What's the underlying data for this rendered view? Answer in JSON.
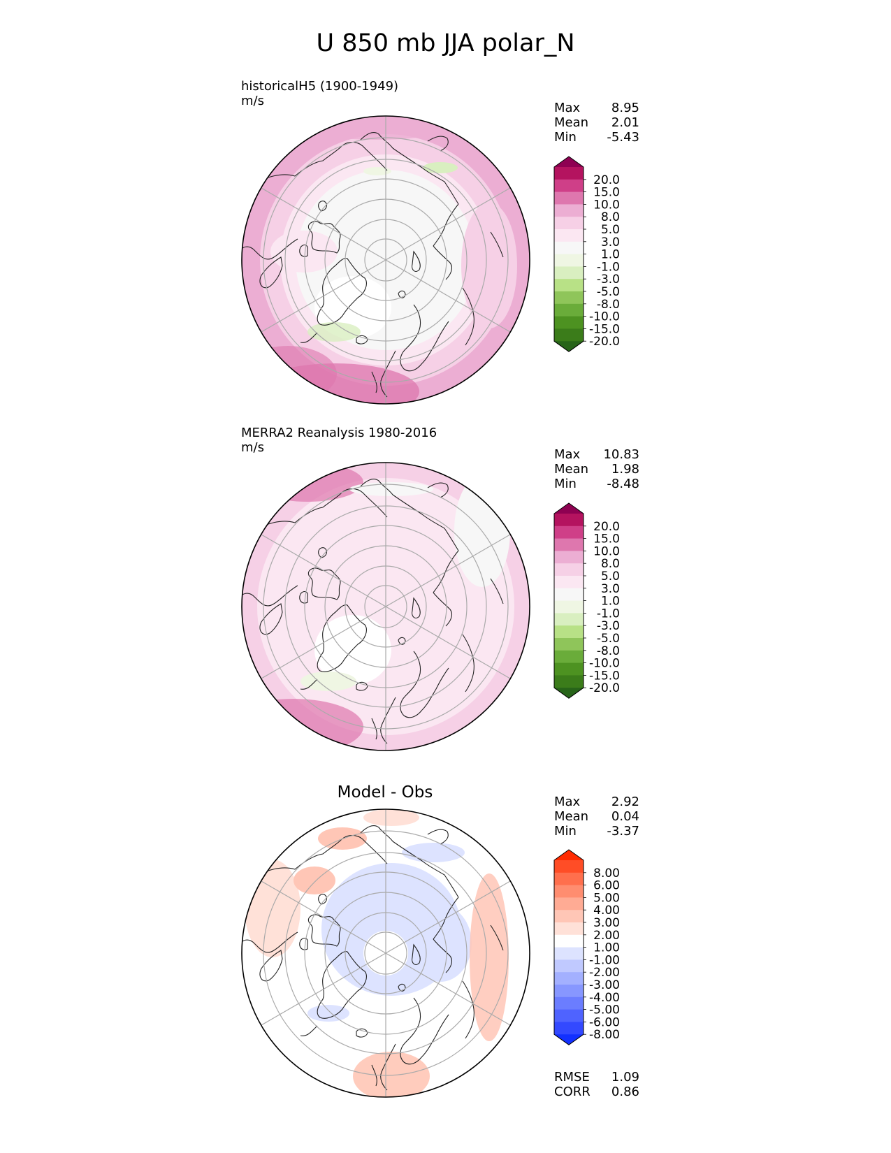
{
  "title": "U 850 mb JJA polar_N",
  "panels": [
    {
      "id": "model",
      "title": "historicalH5 (1900-1949)",
      "units": "m/s",
      "stats": [
        {
          "label": "Max",
          "value": "8.95"
        },
        {
          "label": "Mean",
          "value": "2.01"
        },
        {
          "label": "Min",
          "value": "-5.43"
        }
      ]
    },
    {
      "id": "obs",
      "title": "MERRA2 Reanalysis 1980-2016",
      "units": "m/s",
      "stats": [
        {
          "label": "Max",
          "value": "10.83"
        },
        {
          "label": "Mean",
          "value": "1.98"
        },
        {
          "label": "Min",
          "value": "-8.48"
        }
      ]
    },
    {
      "id": "diff",
      "title": "Model - Obs",
      "units": "",
      "stats": [
        {
          "label": "Max",
          "value": "2.92"
        },
        {
          "label": "Mean",
          "value": "0.04"
        },
        {
          "label": "Min",
          "value": "-3.37"
        }
      ],
      "metrics": [
        {
          "label": "RMSE",
          "value": "1.09"
        },
        {
          "label": "CORR",
          "value": "0.86"
        }
      ]
    }
  ],
  "colorbars": {
    "field": {
      "labels": [
        "20.0",
        "15.0",
        "10.0",
        "8.0",
        "5.0",
        "3.0",
        "1.0",
        "-1.0",
        "-3.0",
        "-5.0",
        "-8.0",
        "-10.0",
        "-15.0",
        "-20.0"
      ],
      "colors": [
        "#8e0152",
        "#b4135f",
        "#cf3f88",
        "#de77ae",
        "#ecaed3",
        "#f6d0e6",
        "#fbe7f2",
        "#f7f7f7",
        "#eff6e3",
        "#d9efc0",
        "#b8e186",
        "#8fc55a",
        "#6aac3a",
        "#4d9221",
        "#3b7c1a",
        "#276419"
      ]
    },
    "diff": {
      "labels": [
        "8.00",
        "6.00",
        "5.00",
        "4.00",
        "3.00",
        "2.00",
        "1.00",
        "-1.00",
        "-2.00",
        "-3.00",
        "-4.00",
        "-5.00",
        "-6.00",
        "-8.00"
      ],
      "colors": [
        "#ff2a00",
        "#ff4d26",
        "#ff6f4d",
        "#ff8d70",
        "#ffab94",
        "#ffc6b6",
        "#ffe1d8",
        "#ffffff",
        "#dde3ff",
        "#c0c9ff",
        "#a3b0ff",
        "#8797ff",
        "#6b7dff",
        "#4f63ff",
        "#3349ff",
        "#1230ff"
      ]
    }
  },
  "chart_data": [
    {
      "type": "heatmap",
      "title": "historicalH5 (1900-1949)",
      "units": "m/s",
      "projection": "north polar stereographic",
      "variable": "U 850 mb JJA",
      "levels": [
        -20,
        -15,
        -10,
        -8,
        -5,
        -3,
        -1,
        1,
        3,
        5,
        8,
        10,
        15,
        20
      ],
      "max": 8.95,
      "mean": 2.01,
      "min": -5.43
    },
    {
      "type": "heatmap",
      "title": "MERRA2 Reanalysis 1980-2016",
      "units": "m/s",
      "projection": "north polar stereographic",
      "variable": "U 850 mb JJA",
      "levels": [
        -20,
        -15,
        -10,
        -8,
        -5,
        -3,
        -1,
        1,
        3,
        5,
        8,
        10,
        15,
        20
      ],
      "max": 10.83,
      "mean": 1.98,
      "min": -8.48
    },
    {
      "type": "heatmap",
      "title": "Model - Obs",
      "projection": "north polar stereographic",
      "levels": [
        -8,
        -6,
        -5,
        -4,
        -3,
        -2,
        -1,
        1,
        2,
        3,
        4,
        5,
        6,
        8
      ],
      "max": 2.92,
      "mean": 0.04,
      "min": -3.37,
      "rmse": 1.09,
      "corr": 0.86
    }
  ]
}
